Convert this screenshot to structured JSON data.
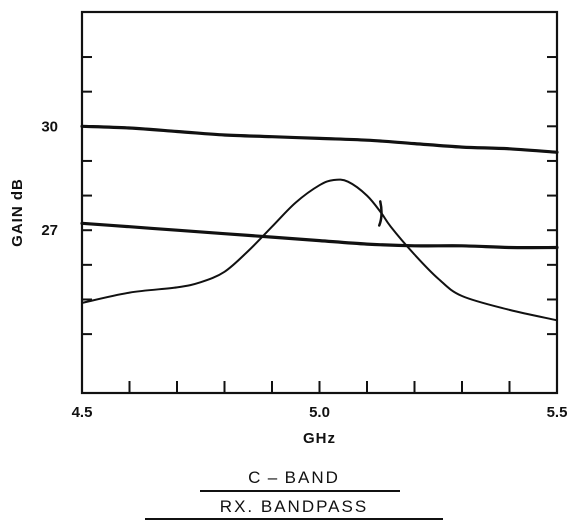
{
  "chart_data": {
    "type": "line",
    "title_lines": [
      "C – BAND",
      "RX. BANDPASS"
    ],
    "xlabel": "GHz",
    "ylabel": "GAIN dB",
    "xlim": [
      4.5,
      5.5
    ],
    "ylim": [
      22.3,
      33.3
    ],
    "x_tick_labels": [
      "4.5",
      "5.0",
      "5.5"
    ],
    "x_tick_values": [
      4.5,
      5.0,
      5.5
    ],
    "y_tick_labels": [
      "30",
      "27"
    ],
    "y_tick_values": [
      30,
      27
    ],
    "x_minor_ticks": [
      4.6,
      4.7,
      4.8,
      4.9,
      5.1,
      5.2,
      5.3,
      5.4
    ],
    "y_minor_ticks": [
      24,
      25,
      26,
      27,
      28,
      29,
      30,
      31,
      32
    ],
    "grid": false,
    "series": [
      {
        "x": [
          4.5,
          4.6,
          4.7,
          4.8,
          4.9,
          5.0,
          5.1,
          5.2,
          5.3,
          5.4,
          5.5
        ],
        "values": [
          30.0,
          29.95,
          29.85,
          29.75,
          29.7,
          29.65,
          29.6,
          29.5,
          29.4,
          29.35,
          29.25
        ]
      },
      {
        "x": [
          4.5,
          4.6,
          4.7,
          4.8,
          4.9,
          5.0,
          5.1,
          5.2,
          5.3,
          5.4,
          5.5
        ],
        "values": [
          27.2,
          27.1,
          27.0,
          26.9,
          26.8,
          26.7,
          26.6,
          26.55,
          26.55,
          26.5,
          26.5
        ]
      },
      {
        "x": [
          4.5,
          4.6,
          4.7,
          4.75,
          4.8,
          4.85,
          4.9,
          4.95,
          5.0,
          5.03,
          5.06,
          5.1,
          5.13,
          5.15,
          5.2,
          5.25,
          5.3,
          5.4,
          5.5
        ],
        "values": [
          24.9,
          25.2,
          25.35,
          25.5,
          25.8,
          26.4,
          27.1,
          27.8,
          28.3,
          28.45,
          28.4,
          28.0,
          27.5,
          27.1,
          26.3,
          25.6,
          25.1,
          24.7,
          24.4
        ]
      }
    ]
  }
}
